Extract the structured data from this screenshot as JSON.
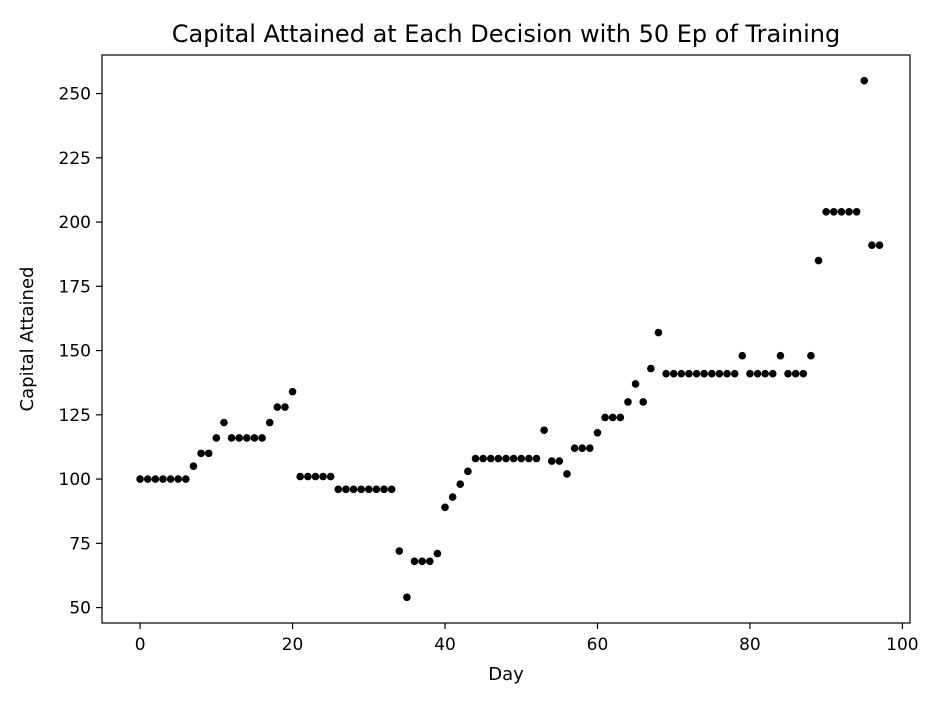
{
  "chart_data": {
    "type": "scatter",
    "title": "Capital Attained at Each Decision with 50 Ep of Training",
    "xlabel": "Day",
    "ylabel": "Capital Attained",
    "xlim": [
      -5,
      101
    ],
    "ylim": [
      44,
      265
    ],
    "xticks": [
      0,
      20,
      40,
      60,
      80,
      100
    ],
    "yticks": [
      50,
      75,
      100,
      125,
      150,
      175,
      200,
      225,
      250
    ],
    "grid": false,
    "marker_color": "#000000",
    "x": [
      0,
      1,
      2,
      3,
      4,
      5,
      6,
      7,
      8,
      9,
      10,
      11,
      12,
      13,
      14,
      15,
      16,
      17,
      18,
      19,
      20,
      21,
      22,
      23,
      24,
      25,
      26,
      27,
      28,
      29,
      30,
      31,
      32,
      33,
      34,
      35,
      36,
      37,
      38,
      39,
      40,
      41,
      42,
      43,
      44,
      45,
      46,
      47,
      48,
      49,
      50,
      51,
      52,
      53,
      54,
      55,
      56,
      57,
      58,
      59,
      60,
      61,
      62,
      63,
      64,
      65,
      66,
      67,
      68,
      69,
      70,
      71,
      72,
      73,
      74,
      75,
      76,
      77,
      78,
      79,
      80,
      81,
      82,
      83,
      84,
      85,
      86,
      87,
      88,
      89,
      90,
      91,
      92,
      93,
      94,
      95,
      96,
      97
    ],
    "y": [
      100,
      100,
      100,
      100,
      100,
      100,
      100,
      105,
      110,
      110,
      116,
      122,
      116,
      116,
      116,
      116,
      116,
      122,
      128,
      128,
      134,
      101,
      101,
      101,
      101,
      101,
      96,
      96,
      96,
      96,
      96,
      96,
      96,
      96,
      72,
      54,
      68,
      68,
      68,
      71,
      89,
      93,
      98,
      103,
      108,
      108,
      108,
      108,
      108,
      108,
      108,
      108,
      108,
      119,
      107,
      107,
      102,
      112,
      112,
      112,
      118,
      124,
      124,
      124,
      130,
      137,
      130,
      143,
      157,
      141,
      141,
      141,
      141,
      141,
      141,
      141,
      141,
      141,
      141,
      148,
      141,
      141,
      141,
      141,
      148,
      141,
      141,
      141,
      148,
      185,
      204,
      204,
      204,
      204,
      204,
      255,
      191,
      191
    ]
  }
}
